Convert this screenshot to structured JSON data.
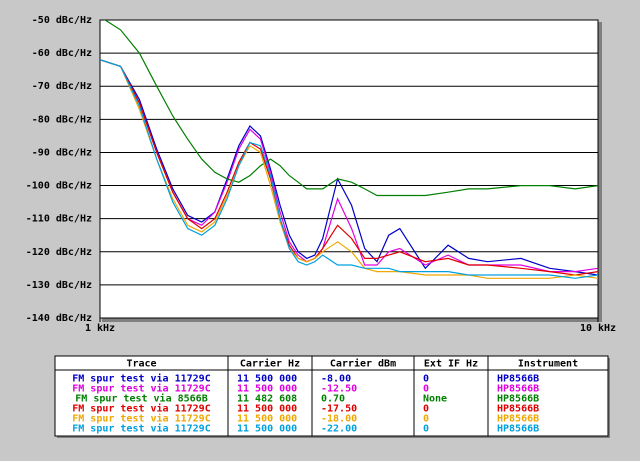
{
  "chart_data": {
    "type": "line",
    "log_x": true,
    "grid": true,
    "xlim": [
      1000,
      10000
    ],
    "xticks": [
      {
        "value": 1000,
        "label": "1 kHz"
      },
      {
        "value": 10000,
        "label": "10 kHz"
      }
    ],
    "ylim": [
      -140,
      -50
    ],
    "yticks": [
      {
        "value": -50,
        "label": "-50 dBc/Hz"
      },
      {
        "value": -60,
        "label": "-60 dBc/Hz"
      },
      {
        "value": -70,
        "label": "-70 dBc/Hz"
      },
      {
        "value": -80,
        "label": "-80 dBc/Hz"
      },
      {
        "value": -90,
        "label": "-90 dBc/Hz"
      },
      {
        "value": -100,
        "label": "-100 dBc/Hz"
      },
      {
        "value": -110,
        "label": "-110 dBc/Hz"
      },
      {
        "value": -120,
        "label": "-120 dBc/Hz"
      },
      {
        "value": -130,
        "label": "-130 dBc/Hz"
      },
      {
        "value": -140,
        "label": "-140 dBc/Hz"
      }
    ],
    "x": [
      1000,
      1100,
      1200,
      1300,
      1400,
      1500,
      1600,
      1700,
      1800,
      1900,
      2000,
      2100,
      2200,
      2300,
      2400,
      2500,
      2600,
      2700,
      2800,
      3000,
      3200,
      3400,
      3600,
      3800,
      4000,
      4500,
      5000,
      5500,
      6000,
      7000,
      8000,
      9000,
      10000
    ],
    "series": [
      {
        "color": "#0000c8",
        "values": [
          -62,
          -64,
          -74,
          -89,
          -101,
          -109,
          -111,
          -108,
          -98,
          -88,
          -82,
          -85,
          -95,
          -106,
          -115,
          -120,
          -122,
          -121,
          -116,
          -98,
          -106,
          -119,
          -123,
          -115,
          -113,
          -125,
          -118,
          -122,
          -123,
          -122,
          -125,
          -126,
          -127
        ]
      },
      {
        "color": "#e000e0",
        "values": [
          -62,
          -64,
          -75,
          -90,
          -102,
          -110,
          -112,
          -108,
          -99,
          -89,
          -83,
          -86,
          -96,
          -108,
          -117,
          -121,
          -123,
          -122,
          -119,
          -104,
          -113,
          -124,
          -124,
          -120,
          -119,
          -124,
          -121,
          -124,
          -124,
          -124,
          -126,
          -126,
          -125
        ]
      },
      {
        "color": "#008000",
        "values": [
          -49,
          -53,
          -60,
          -70,
          -79,
          -86,
          -92,
          -96,
          -98,
          -99,
          -97,
          -94,
          -92,
          -94,
          -97,
          -99,
          -101,
          -101,
          -101,
          -98,
          -99,
          -101,
          -103,
          -103,
          -103,
          -103,
          -102,
          -101,
          -101,
          -100,
          -100,
          -101,
          -100
        ]
      },
      {
        "color": "#e00000",
        "values": [
          -62,
          -64,
          -75,
          -90,
          -102,
          -110,
          -113,
          -110,
          -102,
          -93,
          -87,
          -89,
          -98,
          -110,
          -118,
          -122,
          -123,
          -122,
          -119,
          -112,
          -116,
          -122,
          -122,
          -121,
          -120,
          -123,
          -122,
          -124,
          -124,
          -125,
          -126,
          -127,
          -126
        ]
      },
      {
        "color": "#f0a800",
        "values": [
          -62,
          -64,
          -77,
          -92,
          -104,
          -112,
          -114,
          -111,
          -103,
          -94,
          -88,
          -90,
          -100,
          -111,
          -119,
          -122,
          -123,
          -122,
          -120,
          -117,
          -120,
          -125,
          -126,
          -126,
          -126,
          -127,
          -127,
          -127,
          -128,
          -128,
          -128,
          -127,
          -128
        ]
      },
      {
        "color": "#00a0e0",
        "values": [
          -62,
          -64,
          -76,
          -92,
          -105,
          -113,
          -115,
          -112,
          -104,
          -94,
          -87,
          -88,
          -97,
          -110,
          -119,
          -123,
          -124,
          -123,
          -121,
          -124,
          -124,
          -125,
          -125,
          -125,
          -126,
          -126,
          -126,
          -127,
          -127,
          -127,
          -127,
          -128,
          -127
        ]
      }
    ]
  },
  "table": {
    "header": [
      "Trace",
      "Carrier Hz",
      "Carrier dBm",
      "Ext IF Hz",
      "Instrument"
    ],
    "rows": [
      [
        "FM spur test via 11729C",
        "11 500 000",
        "-8.00",
        "0",
        "HP8566B"
      ],
      [
        "FM spur test via 11729C",
        "11 500 000",
        "-12.50",
        "0",
        "HP8566B"
      ],
      [
        "FM spur test via 8566B",
        "11 482 608",
        "0.70",
        "None",
        "HP8566B"
      ],
      [
        "FM spur test via 11729C",
        "11 500 000",
        "-17.50",
        "0",
        "HP8566B"
      ],
      [
        "FM spur test via 11729C",
        "11 500 000",
        "-18.00",
        "0",
        "HP8566B"
      ],
      [
        "FM spur test via 11729C",
        "11 500 000",
        "-22.00",
        "0",
        "HP8566B"
      ]
    ]
  }
}
